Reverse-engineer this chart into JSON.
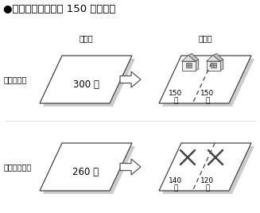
{
  "title": "●建物の敝地面積を 150 ㎡とすと",
  "title_fontsize": 9.5,
  "bg_color": "#ffffff",
  "label_before": "分割前",
  "label_after": "分割後",
  "label_can": "分割できる",
  "label_cannot": "分割できない",
  "row1_left_text": "300 ㎡",
  "row1_right_text1": "150\n㎡",
  "row1_right_text2": "150\n㎡",
  "row2_left_text": "260 ㎡",
  "row2_right_text1": "140\n㎡",
  "row2_right_text2": "120\n㎡",
  "parallelogram_facecolor": "#ffffff",
  "parallelogram_edgecolor": "#444444",
  "shadow_color": "#cccccc",
  "arrow_facecolor": "#ffffff",
  "arrow_edgecolor": "#555555"
}
